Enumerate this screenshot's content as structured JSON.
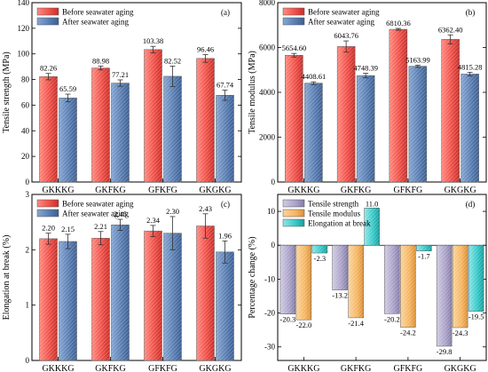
{
  "colors": {
    "before_red": "#f0524a",
    "after_blue": "#5b7fb3",
    "ts_purple": "#aaa2c8",
    "tm_orange": "#f5b562",
    "eb_teal": "#34c8c8"
  },
  "chart_data": [
    {
      "id": "a",
      "panel_label": "(a)",
      "type": "bar",
      "categories": [
        "GKKKG",
        "GKFKG",
        "GFKFG",
        "GKGKG"
      ],
      "ylabel": "Tensile strength (MPa)",
      "ylim": [
        0,
        140
      ],
      "yticks": [
        0,
        20,
        40,
        60,
        80,
        100,
        120,
        140
      ],
      "grid": false,
      "legend_position": "top-left",
      "series": [
        {
          "name": "Before seawater aging",
          "values": [
            82.26,
            88.98,
            103.38,
            96.46
          ],
          "labels": [
            "82.26",
            "88.98",
            "103.38",
            "96.46"
          ],
          "errors": [
            2.5,
            1.5,
            2.5,
            3.0
          ]
        },
        {
          "name": "After seawater aging",
          "values": [
            65.59,
            77.21,
            82.52,
            67.74
          ],
          "labels": [
            "65.59",
            "77.21",
            "82.52",
            "67.74"
          ],
          "errors": [
            3.0,
            2.5,
            8.0,
            4.0
          ]
        }
      ]
    },
    {
      "id": "b",
      "panel_label": "(b)",
      "type": "bar",
      "categories": [
        "GKKKG",
        "GKFKG",
        "GFKFG",
        "GKGKG"
      ],
      "ylabel": "Tensile modulus (MPa)",
      "ylim": [
        0,
        8000
      ],
      "yticks": [
        0,
        2000,
        4000,
        6000,
        8000
      ],
      "grid": false,
      "legend_position": "top-left",
      "series": [
        {
          "name": "Before seawater aging",
          "values": [
            5654.6,
            6043.76,
            6810.36,
            6362.4
          ],
          "labels": [
            "5654.60",
            "6043.76",
            "6810.36",
            "6362.40"
          ],
          "errors": [
            80,
            250,
            40,
            200
          ]
        },
        {
          "name": "After seawater aging",
          "values": [
            4408.61,
            4748.39,
            5163.99,
            4815.28
          ],
          "labels": [
            "4408.61",
            "4748.39",
            "5163.99",
            "4815.28"
          ],
          "errors": [
            60,
            100,
            50,
            80
          ]
        }
      ]
    },
    {
      "id": "c",
      "panel_label": "(c)",
      "type": "bar",
      "categories": [
        "GKKKG",
        "GKFKG",
        "GFKFG",
        "GKGKG"
      ],
      "ylabel": "Elongation at break (%)",
      "ylim": [
        0,
        3
      ],
      "yticks": [
        0,
        1,
        2,
        3
      ],
      "grid": false,
      "legend_position": "top-left",
      "series": [
        {
          "name": "Before seawater aging",
          "values": [
            2.2,
            2.21,
            2.34,
            2.43
          ],
          "labels": [
            "2.20",
            "2.21",
            "2.34",
            "2.43"
          ],
          "errors": [
            0.1,
            0.12,
            0.1,
            0.22
          ]
        },
        {
          "name": "After seawater aging",
          "values": [
            2.15,
            2.45,
            2.3,
            1.96
          ],
          "labels": [
            "2.15",
            "2.45",
            "2.30",
            "1.96"
          ],
          "errors": [
            0.13,
            0.1,
            0.3,
            0.2
          ]
        }
      ]
    },
    {
      "id": "d",
      "panel_label": "(d)",
      "type": "bar",
      "categories": [
        "GKKKG",
        "GKFKG",
        "GFKFG",
        "GKGKG"
      ],
      "ylabel": "Percentage change (%)",
      "ylim": [
        -34,
        15
      ],
      "yticks": [
        -30,
        -20,
        -10,
        0,
        10
      ],
      "grid": false,
      "legend_position": "top-left",
      "series": [
        {
          "name": "Tensile strength",
          "values": [
            -20.3,
            -13.2,
            -20.2,
            -29.8
          ],
          "labels": [
            "-20.3",
            "-13.2",
            "-20.2",
            "-29.8"
          ]
        },
        {
          "name": "Tensile modulus",
          "values": [
            -22.0,
            -21.4,
            -24.2,
            -24.3
          ],
          "labels": [
            "-22.0",
            "-21.4",
            "-24.2",
            "-24.3"
          ]
        },
        {
          "name": "Elongation at break",
          "values": [
            -2.3,
            11.0,
            -1.7,
            -19.5
          ],
          "labels": [
            "-2.3",
            "11.0",
            "-1.7",
            "-19.5"
          ]
        }
      ]
    }
  ]
}
